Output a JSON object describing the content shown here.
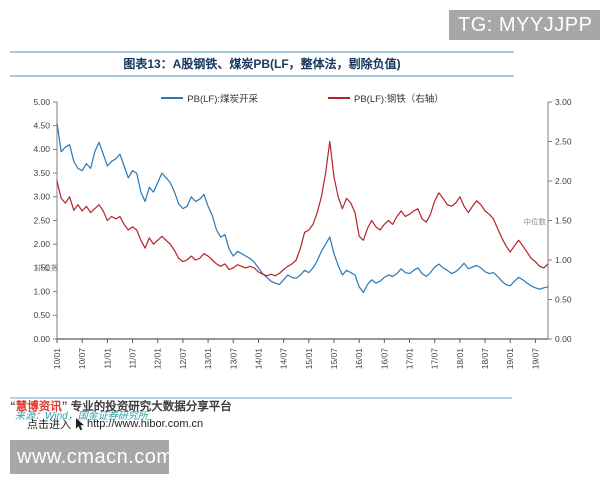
{
  "overlay": {
    "tg_badge": "TG: MYYJJPP",
    "cmacn_badge": "www.cmacn.com"
  },
  "figure": {
    "title": "图表13：A股钢铁、煤炭PB(LF，整体法，剔除负值)"
  },
  "footer": {
    "quote_open": "“",
    "brand": "慧博资讯",
    "quote_close": "”",
    "tagline": " 专业的投资研究大数据分享平台",
    "source_note": "来源：Wind，国金证券研究所",
    "click_label": "点击进入",
    "url": "http://www.hibor.com.cn"
  },
  "chart_data": {
    "type": "line",
    "title": "图表13：A股钢铁、煤炭PB(LF，整体法，剔除负值)",
    "x_interval": "monthly",
    "x_start": "2010-01",
    "x_end": "2019-10",
    "grid": false,
    "legend_position": "top-center",
    "x_tick_labels": [
      "10/01",
      "10/07",
      "11/01",
      "11/07",
      "12/01",
      "12/07",
      "13/01",
      "13/07",
      "14/01",
      "14/07",
      "15/01",
      "15/07",
      "16/01",
      "16/07",
      "17/01",
      "17/07",
      "18/01",
      "18/07",
      "19/01",
      "19/07"
    ],
    "x_tick_month_indices": [
      0,
      6,
      12,
      18,
      24,
      30,
      36,
      42,
      48,
      54,
      60,
      66,
      72,
      78,
      84,
      90,
      96,
      102,
      108,
      114
    ],
    "left_axis": {
      "min": 0,
      "max": 5,
      "step": 0.5,
      "labels": [
        "0.00",
        "0.50",
        "1.00",
        "1.50",
        "2.00",
        "2.50",
        "3.00",
        "3.50",
        "4.00",
        "4.50",
        "5.00"
      ]
    },
    "right_axis": {
      "min": 0,
      "max": 3,
      "step": 0.5,
      "labels": [
        "0.00",
        "0.50",
        "1.00",
        "1.50",
        "2.00",
        "2.50",
        "3.00"
      ]
    },
    "series": [
      {
        "id": "coal",
        "name": "PB(LF):煤炭开采",
        "axis": "left",
        "color": "#2878b5",
        "values": [
          4.55,
          3.95,
          4.05,
          4.1,
          3.75,
          3.6,
          3.55,
          3.7,
          3.6,
          3.95,
          4.15,
          3.9,
          3.65,
          3.75,
          3.8,
          3.9,
          3.65,
          3.4,
          3.55,
          3.5,
          3.1,
          2.9,
          3.2,
          3.1,
          3.3,
          3.5,
          3.4,
          3.3,
          3.1,
          2.85,
          2.75,
          2.8,
          3.0,
          2.9,
          2.95,
          3.05,
          2.8,
          2.6,
          2.3,
          2.15,
          2.2,
          1.9,
          1.75,
          1.85,
          1.8,
          1.75,
          1.7,
          1.62,
          1.5,
          1.38,
          1.3,
          1.22,
          1.18,
          1.15,
          1.25,
          1.35,
          1.3,
          1.28,
          1.35,
          1.45,
          1.4,
          1.5,
          1.65,
          1.85,
          2.0,
          2.15,
          1.8,
          1.55,
          1.35,
          1.45,
          1.4,
          1.35,
          1.1,
          0.98,
          1.15,
          1.25,
          1.18,
          1.22,
          1.3,
          1.35,
          1.32,
          1.38,
          1.48,
          1.4,
          1.38,
          1.45,
          1.5,
          1.38,
          1.32,
          1.4,
          1.52,
          1.58,
          1.5,
          1.45,
          1.38,
          1.42,
          1.5,
          1.6,
          1.48,
          1.52,
          1.55,
          1.5,
          1.42,
          1.38,
          1.4,
          1.32,
          1.22,
          1.15,
          1.12,
          1.22,
          1.3,
          1.25,
          1.18,
          1.12,
          1.08,
          1.05,
          1.08,
          1.1
        ]
      },
      {
        "id": "steel",
        "name": "PB(LF):钢铁（右轴）",
        "axis": "right",
        "color": "#b4232a",
        "values": [
          2.0,
          1.78,
          1.72,
          1.8,
          1.63,
          1.7,
          1.62,
          1.68,
          1.6,
          1.65,
          1.7,
          1.62,
          1.5,
          1.55,
          1.52,
          1.55,
          1.45,
          1.38,
          1.42,
          1.38,
          1.25,
          1.15,
          1.28,
          1.2,
          1.25,
          1.3,
          1.25,
          1.2,
          1.12,
          1.02,
          0.98,
          1.0,
          1.05,
          1.0,
          1.02,
          1.08,
          1.05,
          1.0,
          0.95,
          0.92,
          0.95,
          0.88,
          0.9,
          0.94,
          0.92,
          0.9,
          0.92,
          0.9,
          0.85,
          0.82,
          0.8,
          0.82,
          0.8,
          0.83,
          0.88,
          0.92,
          0.95,
          1.0,
          1.15,
          1.35,
          1.38,
          1.45,
          1.6,
          1.8,
          2.1,
          2.5,
          2.05,
          1.8,
          1.65,
          1.78,
          1.72,
          1.6,
          1.3,
          1.25,
          1.4,
          1.5,
          1.42,
          1.38,
          1.45,
          1.5,
          1.45,
          1.55,
          1.62,
          1.55,
          1.58,
          1.62,
          1.65,
          1.52,
          1.48,
          1.58,
          1.75,
          1.85,
          1.78,
          1.7,
          1.68,
          1.72,
          1.8,
          1.68,
          1.6,
          1.68,
          1.75,
          1.7,
          1.62,
          1.58,
          1.52,
          1.4,
          1.28,
          1.18,
          1.1,
          1.18,
          1.25,
          1.18,
          1.1,
          1.02,
          0.98,
          0.92,
          0.9,
          0.95
        ]
      }
    ],
    "annotations": [
      {
        "text": "中位数",
        "axis": "left",
        "value": 1.45
      },
      {
        "text": "中位数",
        "axis": "right",
        "value": 1.45
      }
    ]
  }
}
